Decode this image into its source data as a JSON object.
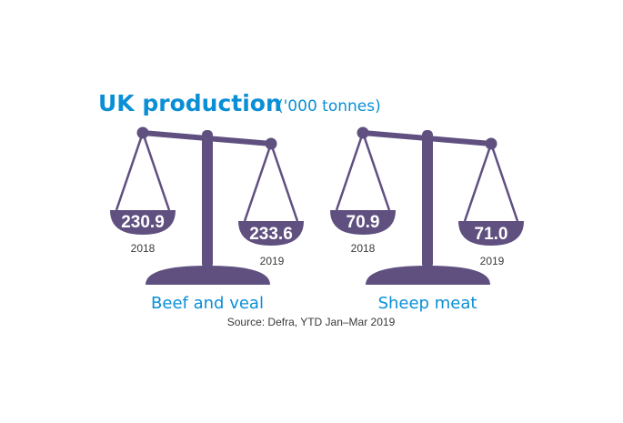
{
  "title": "UK production",
  "unit": "('000 tonnes)",
  "source": "Source: Defra, YTD Jan–Mar 2019",
  "colors": {
    "accent": "#0a8fd6",
    "scale": "#5f5080"
  },
  "chart_data": {
    "type": "table",
    "title": "UK production",
    "unit": "('000 tonnes)",
    "categories": [
      "Beef and veal",
      "Sheep meat"
    ],
    "series": [
      {
        "name": "2018",
        "values": [
          230.9,
          70.9
        ]
      },
      {
        "name": "2019",
        "values": [
          233.6,
          71.0
        ]
      }
    ],
    "labels": {
      "beef": {
        "label": "Beef and veal",
        "v2018": "230.9",
        "v2019": "233.6",
        "y2018": "2018",
        "y2019": "2019"
      },
      "sheep": {
        "label": "Sheep meat",
        "v2018": "70.9",
        "v2019": "71.0",
        "y2018": "2018",
        "y2019": "2019"
      }
    }
  }
}
